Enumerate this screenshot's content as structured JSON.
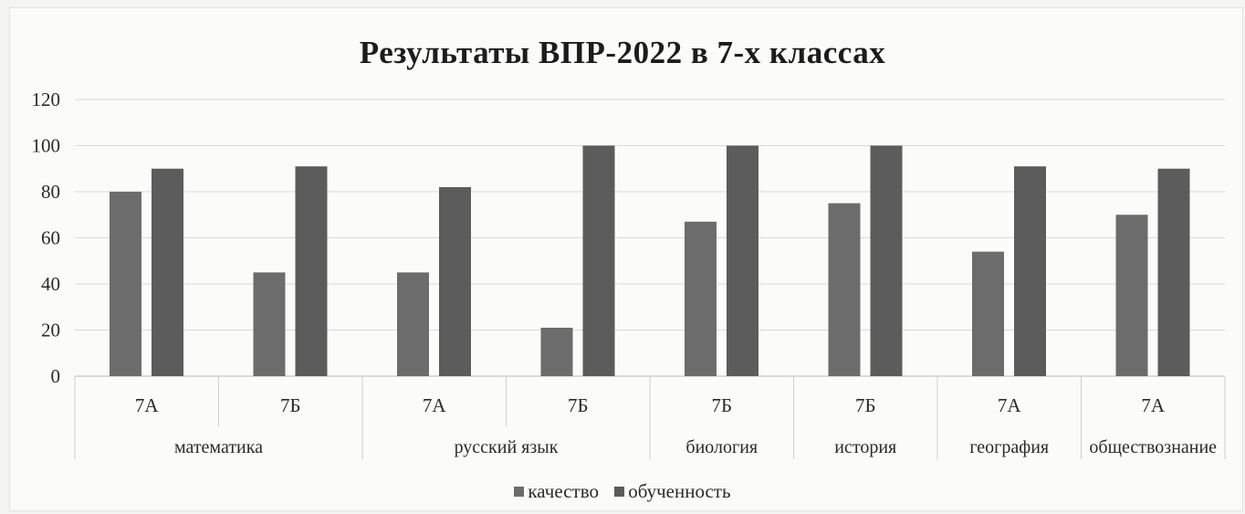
{
  "chart_data": {
    "type": "bar",
    "title": "Результаты ВПР-2022 в 7-х классах",
    "categories": [
      "7А",
      "7Б",
      "7А",
      "7Б",
      "7Б",
      "7Б",
      "7А",
      "7А"
    ],
    "groups": [
      {
        "label": "математика",
        "span": 2
      },
      {
        "label": "русский язык",
        "span": 2
      },
      {
        "label": "биология",
        "span": 1
      },
      {
        "label": "история",
        "span": 1
      },
      {
        "label": "география",
        "span": 1
      },
      {
        "label": "обществознание",
        "span": 1
      }
    ],
    "series": [
      {
        "name": "качество",
        "values": [
          80,
          45,
          45,
          21,
          67,
          75,
          54,
          70
        ],
        "color": "#6c6c6c"
      },
      {
        "name": "обученность",
        "values": [
          90,
          91,
          82,
          100,
          100,
          100,
          91,
          90
        ],
        "color": "#5c5c5c"
      }
    ],
    "y_ticks": [
      0,
      20,
      40,
      60,
      80,
      100,
      120
    ],
    "ylim": [
      0,
      120
    ],
    "grid": true,
    "legend_position": "bottom"
  }
}
